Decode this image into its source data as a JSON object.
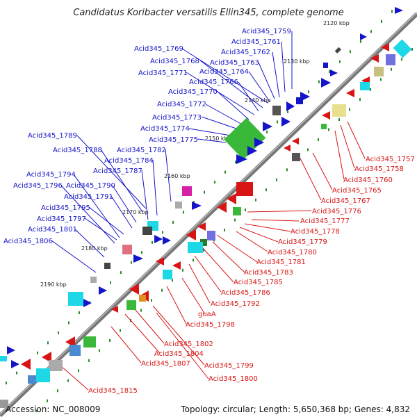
{
  "title": "Candidatus Koribacter versatilis Ellin345, complete genome",
  "footer": {
    "accession": "Accession: NC_008009",
    "summary": "Topology: circular; Length: 5,650,368 bp; Genes: 4,832"
  },
  "kbp_ticks": [
    "2120 kbp",
    "2130 kbp",
    "2140 kbp",
    "2150 kbp",
    "2160 kbp",
    "2170 kbp",
    "2180 kbp",
    "2190 kbp"
  ],
  "labels_plus": [
    "Acid345_1759",
    "Acid345_1761",
    "Acid345_1762",
    "Acid345_1769",
    "Acid345_1768",
    "Acid345_1763",
    "Acid345_1771",
    "Acid345_1764",
    "Acid345_1766",
    "Acid345_1770",
    "Acid345_1772",
    "Acid345_1773",
    "Acid345_1774",
    "Acid345_1775",
    "Acid345_1789",
    "Acid345_1788",
    "Acid345_1782",
    "Acid345_1784",
    "Acid345_1787",
    "Acid345_1794",
    "Acid345_1796",
    "Acid345_1790",
    "Acid345_1791",
    "Acid345_1795",
    "Acid345_1797",
    "Acid345_1801",
    "Acid345_1806"
  ],
  "labels_minus": [
    "Acid345_1757",
    "Acid345_1758",
    "Acid345_1760",
    "Acid345_1765",
    "Acid345_1767",
    "Acid345_1776",
    "Acid345_1777",
    "Acid345_1778",
    "Acid345_1779",
    "Acid345_1780",
    "Acid345_1781",
    "Acid345_1783",
    "Acid345_1785",
    "Acid345_1786",
    "Acid345_1792",
    "guaA",
    "Acid345_1798",
    "Acid345_1802",
    "Acid345_1804",
    "Acid345_1807",
    "Acid345_1799",
    "Acid345_1800",
    "Acid345_1815"
  ],
  "colors": {
    "plus_strand": "#1414c8",
    "minus_strand": "#d81414",
    "backbone": "#777777",
    "tick": "#2a8a2a"
  }
}
